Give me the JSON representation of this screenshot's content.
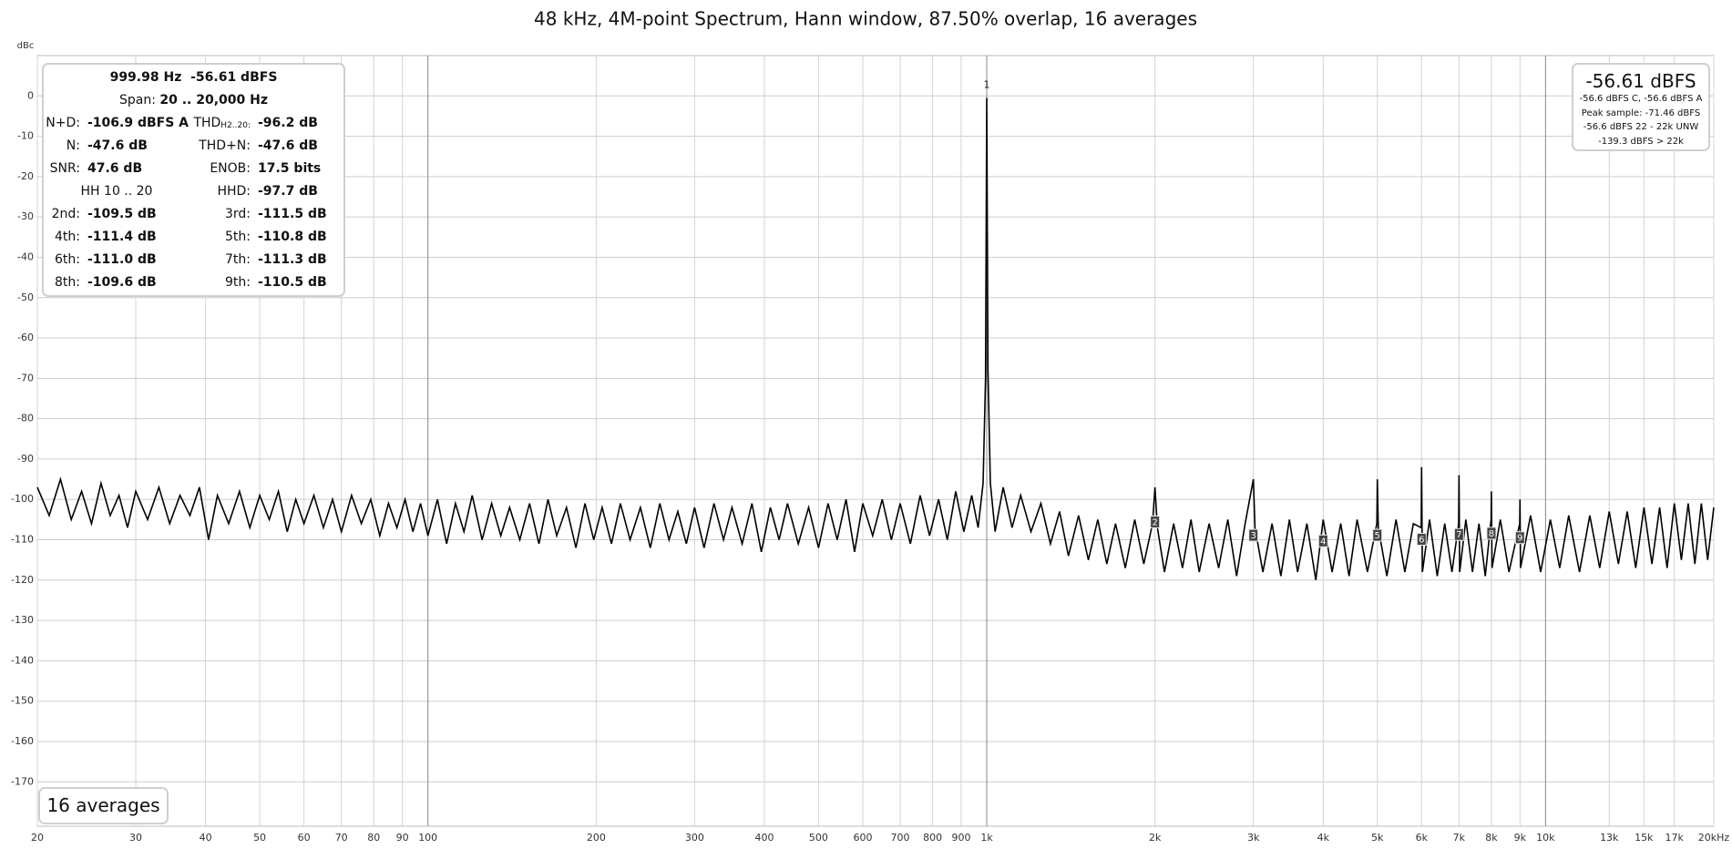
{
  "chart_data": {
    "type": "line",
    "title": "48 kHz, 4M-point Spectrum, Hann window, 87.50% overlap, 16 averages",
    "y_label": "dBc",
    "x_log": true,
    "grid": true,
    "color": "#000000",
    "xlim": [
      20,
      20000
    ],
    "ylim": [
      -181,
      10
    ],
    "xticks": [
      20,
      30,
      40,
      50,
      60,
      70,
      80,
      90,
      100,
      200,
      300,
      400,
      500,
      600,
      700,
      800,
      900,
      {
        "value": 1000,
        "label": "1k"
      },
      {
        "value": 2000,
        "label": "2k"
      },
      {
        "value": 3000,
        "label": "3k"
      },
      {
        "value": 4000,
        "label": "4k"
      },
      {
        "value": 5000,
        "label": "5k"
      },
      {
        "value": 6000,
        "label": "6k"
      },
      {
        "value": 7000,
        "label": "7k"
      },
      {
        "value": 8000,
        "label": "8k"
      },
      {
        "value": 9000,
        "label": "9k"
      },
      {
        "value": 10000,
        "label": "10k"
      },
      {
        "value": 13000,
        "label": "13k"
      },
      {
        "value": 15000,
        "label": "15k"
      },
      {
        "value": 17000,
        "label": "17k"
      },
      {
        "value": 20000,
        "label": "20kHz"
      }
    ],
    "yticks": [
      0,
      -10,
      -20,
      -30,
      -40,
      -50,
      -60,
      -70,
      -80,
      -90,
      -100,
      -110,
      -120,
      -130,
      -140,
      -150,
      -160,
      -170
    ],
    "x": [
      20,
      21,
      22,
      23,
      24,
      25,
      26,
      27,
      28,
      29,
      30,
      31.5,
      33,
      34.5,
      36,
      37.5,
      39,
      40.5,
      42,
      44,
      46,
      48,
      50,
      52,
      54,
      56,
      58,
      60,
      62.5,
      65,
      67.5,
      70,
      73,
      76,
      79,
      82,
      85,
      88,
      91,
      94,
      97,
      100,
      104,
      108,
      112,
      116,
      120,
      125,
      130,
      135,
      140,
      146,
      152,
      158,
      164,
      170,
      177,
      184,
      191,
      198,
      205,
      213,
      221,
      230,
      240,
      250,
      260,
      270,
      280,
      290,
      300,
      312,
      325,
      338,
      350,
      365,
      380,
      395,
      410,
      425,
      440,
      460,
      480,
      500,
      520,
      540,
      560,
      580,
      600,
      625,
      650,
      675,
      700,
      730,
      760,
      790,
      820,
      850,
      880,
      910,
      940,
      965,
      985,
      995,
      999.98,
      1005,
      1015,
      1035,
      1070,
      1110,
      1150,
      1200,
      1250,
      1300,
      1350,
      1400,
      1460,
      1520,
      1580,
      1640,
      1700,
      1770,
      1840,
      1910,
      1980,
      2000,
      2020,
      2080,
      2160,
      2240,
      2320,
      2400,
      2500,
      2600,
      2700,
      2800,
      2900,
      3000,
      3020,
      3120,
      3240,
      3360,
      3480,
      3600,
      3740,
      3880,
      4000,
      4150,
      4300,
      4450,
      4600,
      4800,
      4990,
      5000,
      5020,
      5200,
      5400,
      5600,
      5800,
      5990,
      6000,
      6020,
      6200,
      6400,
      6600,
      6800,
      6990,
      7000,
      7020,
      7200,
      7400,
      7600,
      7800,
      7990,
      8000,
      8020,
      8300,
      8600,
      8990,
      9000,
      9020,
      9400,
      9800,
      10200,
      10600,
      11000,
      11500,
      12000,
      12500,
      13000,
      13500,
      14000,
      14500,
      15000,
      15500,
      16000,
      16500,
      17000,
      17500,
      18000,
      18500,
      19000,
      19500,
      20000
    ],
    "values": [
      -97,
      -104,
      -95,
      -105,
      -98,
      -106,
      -96,
      -104,
      -99,
      -107,
      -98,
      -105,
      -97,
      -106,
      -99,
      -104,
      -97,
      -110,
      -99,
      -106,
      -98,
      -107,
      -99,
      -105,
      -98,
      -108,
      -100,
      -106,
      -99,
      -107,
      -100,
      -108,
      -99,
      -106,
      -100,
      -109,
      -101,
      -107,
      -100,
      -108,
      -101,
      -109,
      -100,
      -111,
      -101,
      -108,
      -99,
      -110,
      -101,
      -109,
      -102,
      -110,
      -101,
      -111,
      -100,
      -109,
      -102,
      -112,
      -101,
      -110,
      -102,
      -111,
      -101,
      -110,
      -102,
      -112,
      -101,
      -110,
      -103,
      -111,
      -102,
      -112,
      -101,
      -110,
      -102,
      -111,
      -101,
      -113,
      -102,
      -110,
      -101,
      -111,
      -102,
      -112,
      -101,
      -110,
      -100,
      -113,
      -101,
      -109,
      -100,
      -110,
      -101,
      -111,
      -99,
      -109,
      -100,
      -110,
      -98,
      -108,
      -99,
      -107,
      -96,
      -70,
      -0.5,
      -68,
      -96,
      -108,
      -97,
      -107,
      -99,
      -108,
      -101,
      -111,
      -103,
      -114,
      -104,
      -115,
      -105,
      -116,
      -106,
      -117,
      -105,
      -116,
      -106,
      -97,
      -107,
      -118,
      -106,
      -117,
      -105,
      -118,
      -106,
      -117,
      -105,
      -119,
      -106,
      -95,
      -107,
      -118,
      -106,
      -119,
      -105,
      -118,
      -106,
      -120,
      -105,
      -118,
      -106,
      -119,
      -105,
      -118,
      -106,
      -95,
      -107,
      -119,
      -105,
      -118,
      -106,
      -107,
      -92,
      -118,
      -105,
      -119,
      -106,
      -118,
      -106,
      -94,
      -118,
      -105,
      -118,
      -106,
      -119,
      -105,
      -98,
      -117,
      -105,
      -118,
      -106,
      -100,
      -117,
      -104,
      -118,
      -105,
      -117,
      -104,
      -118,
      -104,
      -117,
      -103,
      -116,
      -103,
      -117,
      -102,
      -116,
      -102,
      -117,
      -101,
      -115,
      -101,
      -116,
      -101,
      -115,
      -102
    ],
    "markers": [
      {
        "label": "1",
        "x": 1000,
        "y": 2.7
      },
      {
        "label": "2",
        "x": 2000,
        "y": -105.7
      },
      {
        "label": "3",
        "x": 3000,
        "y": -109
      },
      {
        "label": "4",
        "x": 4000,
        "y": -110.4
      },
      {
        "label": "5",
        "x": 5000,
        "y": -109
      },
      {
        "label": "6",
        "x": 6000,
        "y": -110
      },
      {
        "label": "7",
        "x": 7000,
        "y": -108.8
      },
      {
        "label": "8",
        "x": 8000,
        "y": -108.5
      },
      {
        "label": "9",
        "x": 9000,
        "y": -109.6
      }
    ],
    "info_panel": {
      "header": "999.98 Hz  -56.61 dBFS",
      "span_label": "Span:",
      "span": "20 .. 20,000 Hz",
      "rows": [
        [
          {
            "label": "N+D:",
            "value": "-106.9 dBFS A"
          },
          {
            "label": "THD",
            "sub": "H2..20:",
            "value": "-96.2 dB"
          }
        ],
        [
          {
            "label": "N:",
            "value": "-47.6 dB"
          },
          {
            "label": "THD+N:",
            "value": "-47.6 dB"
          }
        ],
        [
          {
            "label": "SNR:",
            "value": "47.6 dB"
          },
          {
            "label": "ENOB:",
            "value": "17.5 bits"
          }
        ],
        [
          {
            "label": "HH 10 .. 20"
          },
          {
            "label": "HHD:",
            "value": "-97.7 dB"
          }
        ],
        [
          {
            "label": "2nd:",
            "value": "-109.5 dB"
          },
          {
            "label": "3rd:",
            "value": "-111.5 dB"
          }
        ],
        [
          {
            "label": "4th:",
            "value": "-111.4 dB"
          },
          {
            "label": "5th:",
            "value": "-110.8 dB"
          }
        ],
        [
          {
            "label": "6th:",
            "value": "-111.0 dB"
          },
          {
            "label": "7th:",
            "value": "-111.3 dB"
          }
        ],
        [
          {
            "label": "8th:",
            "value": "-109.6 dB"
          },
          {
            "label": "9th:",
            "value": "-110.5 dB"
          }
        ]
      ]
    },
    "level_panel": {
      "value": "-56.61 dBFS",
      "lines": [
        "-56.6 dBFS C, -56.6 dBFS A",
        "Peak sample: -71.46 dBFS",
        "-56.6 dBFS 22 - 22k UNW",
        "-139.3 dBFS > 22k"
      ]
    },
    "averages_label": "16 averages"
  }
}
